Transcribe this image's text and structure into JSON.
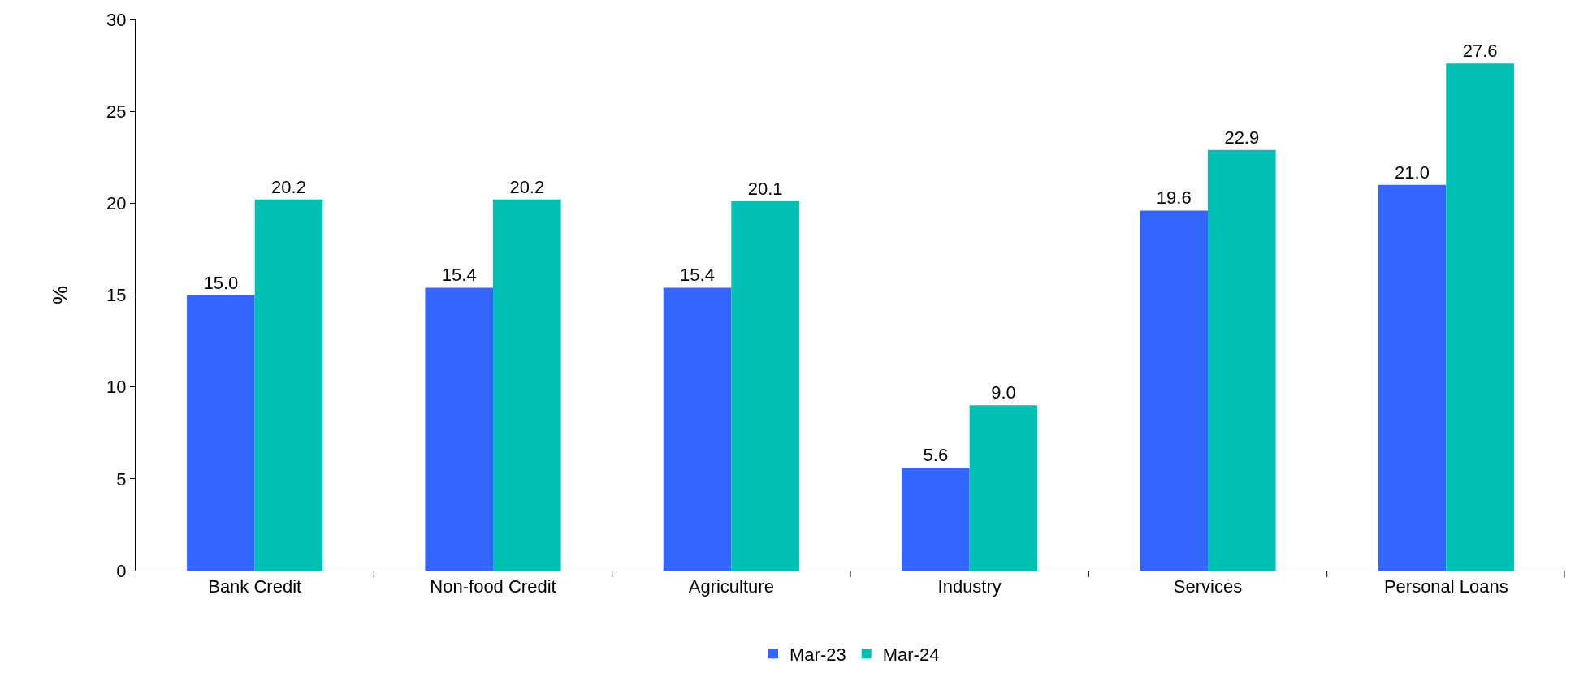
{
  "chart_data": {
    "type": "bar",
    "ylabel": "%",
    "categories": [
      "Bank Credit",
      "Non-food Credit",
      "Agriculture",
      "Industry",
      "Services",
      "Personal Loans"
    ],
    "series": [
      {
        "name": "Mar-23",
        "color": "#3366ff",
        "values": [
          15.0,
          15.4,
          15.4,
          5.6,
          19.6,
          21.0
        ],
        "value_labels": [
          "15.0",
          "15.4",
          "15.4",
          "5.6",
          "19.6",
          "21.0"
        ]
      },
      {
        "name": "Mar-24",
        "color": "#00bfb3",
        "values": [
          20.2,
          20.2,
          20.1,
          9.0,
          22.9,
          27.6
        ],
        "value_labels": [
          "20.2",
          "20.2",
          "20.1",
          "9.0",
          "22.9",
          "27.6"
        ]
      }
    ],
    "ylim": [
      0,
      30
    ],
    "yticks": [
      0,
      5,
      10,
      15,
      20,
      25,
      30
    ],
    "legend": "bottom"
  }
}
